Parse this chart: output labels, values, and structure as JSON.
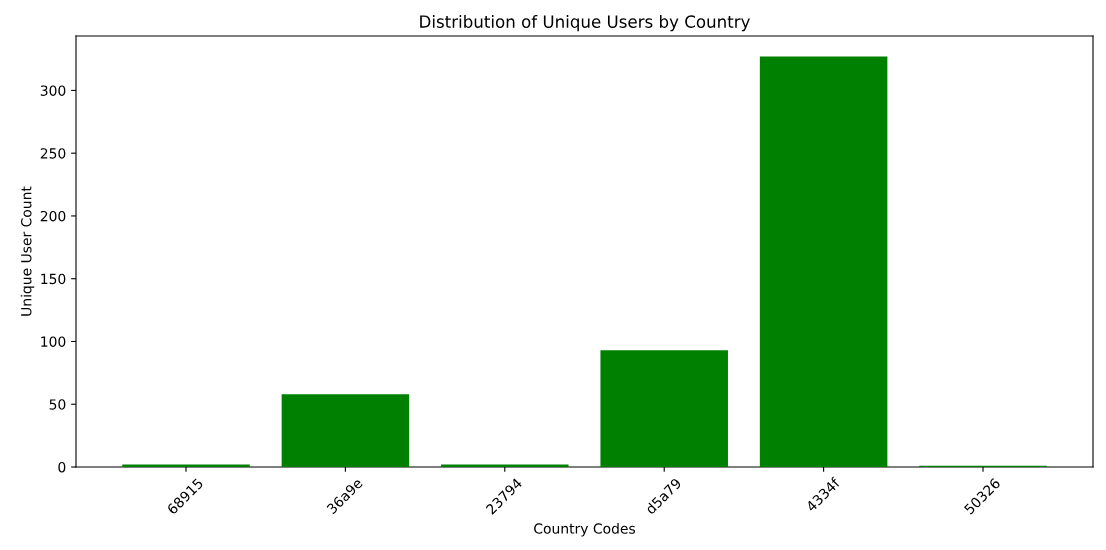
{
  "chart_data": {
    "type": "bar",
    "title": "Distribution of Unique Users by Country",
    "xlabel": "Country Codes",
    "ylabel": "Unique User Count",
    "categories": [
      "68915",
      "36a9e",
      "23794",
      "d5a79",
      "4334f",
      "50326"
    ],
    "values": [
      2,
      58,
      2,
      93,
      327,
      1
    ],
    "color": "#008000",
    "ylim": [
      0,
      343.35
    ],
    "yticks": [
      0,
      50,
      100,
      150,
      200,
      250,
      300
    ],
    "grid": false,
    "legend": false
  }
}
